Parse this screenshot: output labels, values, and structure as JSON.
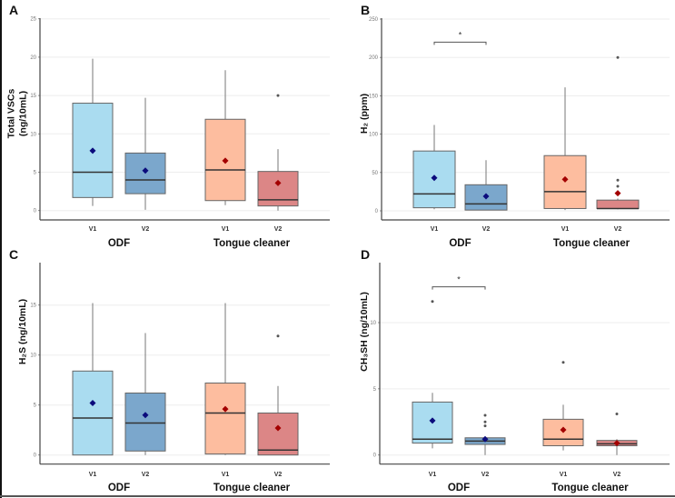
{
  "chart_data": [
    {
      "type": "box",
      "panel": "A",
      "ylabel": [
        "Total VSCs",
        "(ng/10mL)"
      ],
      "yticks": [
        0,
        5,
        10,
        15,
        20,
        25
      ],
      "groups": [
        "ODF",
        "Tongue cleaner"
      ],
      "boxes": [
        {
          "group": "ODF",
          "visit": "V1",
          "min": 0.6,
          "q1": 1.7,
          "median": 5.0,
          "q3": 14.0,
          "max": 19.8,
          "mean": 7.8,
          "outliers": [],
          "color": "#aadcf0"
        },
        {
          "group": "ODF",
          "visit": "V2",
          "min": 0.1,
          "q1": 2.2,
          "median": 4.0,
          "q3": 7.5,
          "max": 14.7,
          "mean": 5.2,
          "outliers": [],
          "color": "#7ba7cc"
        },
        {
          "group": "Tongue cleaner",
          "visit": "V1",
          "min": 0.7,
          "q1": 1.3,
          "median": 5.3,
          "q3": 11.9,
          "max": 18.3,
          "mean": 6.5,
          "outliers": [],
          "color": "#fdbd9f"
        },
        {
          "group": "Tongue cleaner",
          "visit": "V2",
          "min": 0.0,
          "q1": 0.6,
          "median": 1.4,
          "q3": 5.1,
          "max": 8.0,
          "mean": 3.6,
          "outliers": [
            15.0
          ],
          "color": "#dc8686"
        }
      ],
      "significance": []
    },
    {
      "type": "box",
      "panel": "B",
      "ylabel": [
        "H₂ (ppm)"
      ],
      "yticks": [
        0,
        50,
        100,
        150,
        200,
        250
      ],
      "groups": [
        "ODF",
        "Tongue cleaner"
      ],
      "boxes": [
        {
          "group": "ODF",
          "visit": "V1",
          "min": 2,
          "q1": 4,
          "median": 22,
          "q3": 78,
          "max": 112,
          "mean": 43,
          "outliers": [],
          "color": "#aadcf0"
        },
        {
          "group": "ODF",
          "visit": "V2",
          "min": 1,
          "q1": 1,
          "median": 9,
          "q3": 34,
          "max": 66,
          "mean": 19,
          "outliers": [],
          "color": "#7ba7cc"
        },
        {
          "group": "Tongue cleaner",
          "visit": "V1",
          "min": 1,
          "q1": 3,
          "median": 25,
          "q3": 72,
          "max": 161,
          "mean": 41,
          "outliers": [],
          "color": "#fdbd9f"
        },
        {
          "group": "Tongue cleaner",
          "visit": "V2",
          "min": 2,
          "q1": 3,
          "median": 3,
          "q3": 14,
          "max": 16,
          "mean": 23,
          "outliers": [
            32,
            40,
            200
          ],
          "color": "#dc8686"
        }
      ],
      "significance": [
        {
          "from": 0,
          "to": 1,
          "y": 220,
          "label": "*"
        }
      ]
    },
    {
      "type": "box",
      "panel": "C",
      "ylabel": [
        "H₂S (ng/10mL)"
      ],
      "yticks": [
        0,
        5,
        10,
        15
      ],
      "groups": [
        "ODF",
        "Tongue cleaner"
      ],
      "boxes": [
        {
          "group": "ODF",
          "visit": "V1",
          "min": 0,
          "q1": 0,
          "median": 3.7,
          "q3": 8.4,
          "max": 15.2,
          "mean": 5.2,
          "outliers": [],
          "color": "#aadcf0"
        },
        {
          "group": "ODF",
          "visit": "V2",
          "min": 0,
          "q1": 0.4,
          "median": 3.2,
          "q3": 6.2,
          "max": 12.2,
          "mean": 4.0,
          "outliers": [],
          "color": "#7ba7cc"
        },
        {
          "group": "Tongue cleaner",
          "visit": "V1",
          "min": 0,
          "q1": 0.1,
          "median": 4.2,
          "q3": 7.2,
          "max": 15.2,
          "mean": 4.6,
          "outliers": [],
          "color": "#fdbd9f"
        },
        {
          "group": "Tongue cleaner",
          "visit": "V2",
          "min": 0,
          "q1": 0,
          "median": 0.5,
          "q3": 4.2,
          "max": 6.9,
          "mean": 2.7,
          "outliers": [
            11.9
          ],
          "color": "#dc8686"
        }
      ],
      "significance": []
    },
    {
      "type": "box",
      "panel": "D",
      "ylabel": [
        "CH₃SH (ng/10mL)"
      ],
      "yticks": [
        0,
        5,
        10
      ],
      "groups": [
        "ODF",
        "Tongue cleaner"
      ],
      "boxes": [
        {
          "group": "ODF",
          "visit": "V1",
          "min": 0.5,
          "q1": 0.9,
          "median": 1.2,
          "q3": 4.0,
          "max": 4.7,
          "mean": 2.6,
          "outliers": [
            11.6
          ],
          "color": "#aadcf0"
        },
        {
          "group": "ODF",
          "visit": "V2",
          "min": 0,
          "q1": 0.8,
          "median": 1.05,
          "q3": 1.3,
          "max": 1.3,
          "mean": 1.2,
          "outliers": [
            2.2,
            2.5,
            3.0
          ],
          "color": "#7ba7cc"
        },
        {
          "group": "Tongue cleaner",
          "visit": "V1",
          "min": 0.35,
          "q1": 0.7,
          "median": 1.2,
          "q3": 2.7,
          "max": 3.8,
          "mean": 1.9,
          "outliers": [
            7.0
          ],
          "color": "#fdbd9f"
        },
        {
          "group": "Tongue cleaner",
          "visit": "V2",
          "min": 0,
          "q1": 0.7,
          "median": 0.85,
          "q3": 1.1,
          "max": 1.2,
          "mean": 0.9,
          "outliers": [
            3.1
          ],
          "color": "#dc8686"
        }
      ],
      "significance": [
        {
          "from": 0,
          "to": 1,
          "y": 12.7,
          "label": "*"
        }
      ]
    }
  ],
  "colors": {
    "mean_odf": "#0b0b7c",
    "mean_tc": "#a30000",
    "outlier": "#555555",
    "grid": "#ededed"
  }
}
